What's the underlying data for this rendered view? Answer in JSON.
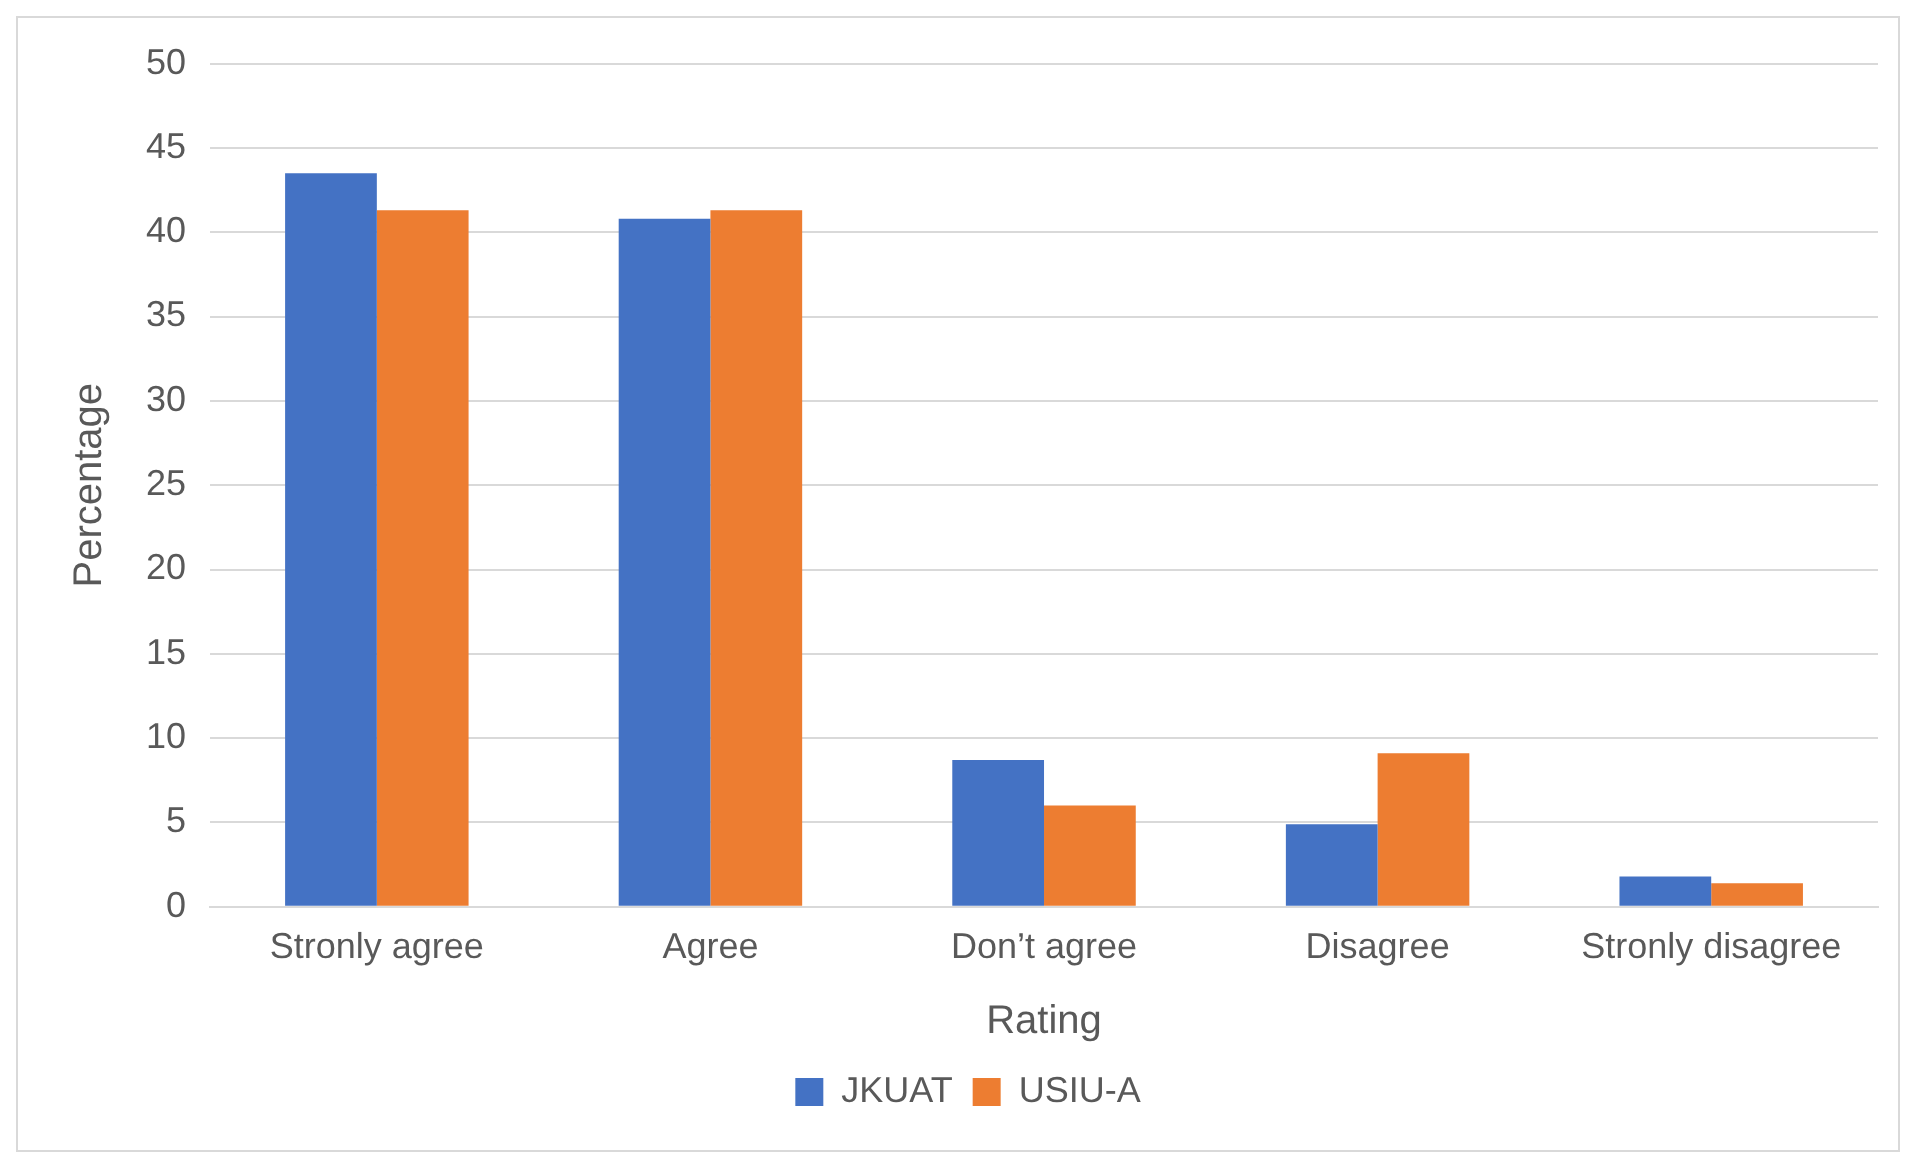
{
  "chart_data": {
    "type": "bar",
    "xlabel": "Rating",
    "ylabel": "Percentage",
    "categories": [
      "Stronly agree",
      "Agree",
      "Don’t agree",
      "Disagree",
      "Stronly disagree"
    ],
    "series": [
      {
        "name": "JKUAT",
        "color": "#4472c4",
        "values": [
          43.5,
          40.8,
          8.7,
          4.9,
          1.8
        ]
      },
      {
        "name": "USIU-A",
        "color": "#ed7d31",
        "values": [
          41.3,
          41.3,
          6.0,
          9.1,
          1.4
        ]
      }
    ],
    "ylim": [
      0,
      50
    ],
    "yticks": [
      0,
      5,
      10,
      15,
      20,
      25,
      30,
      35,
      40,
      45,
      50
    ],
    "grid": "y",
    "legend": "bottom"
  }
}
